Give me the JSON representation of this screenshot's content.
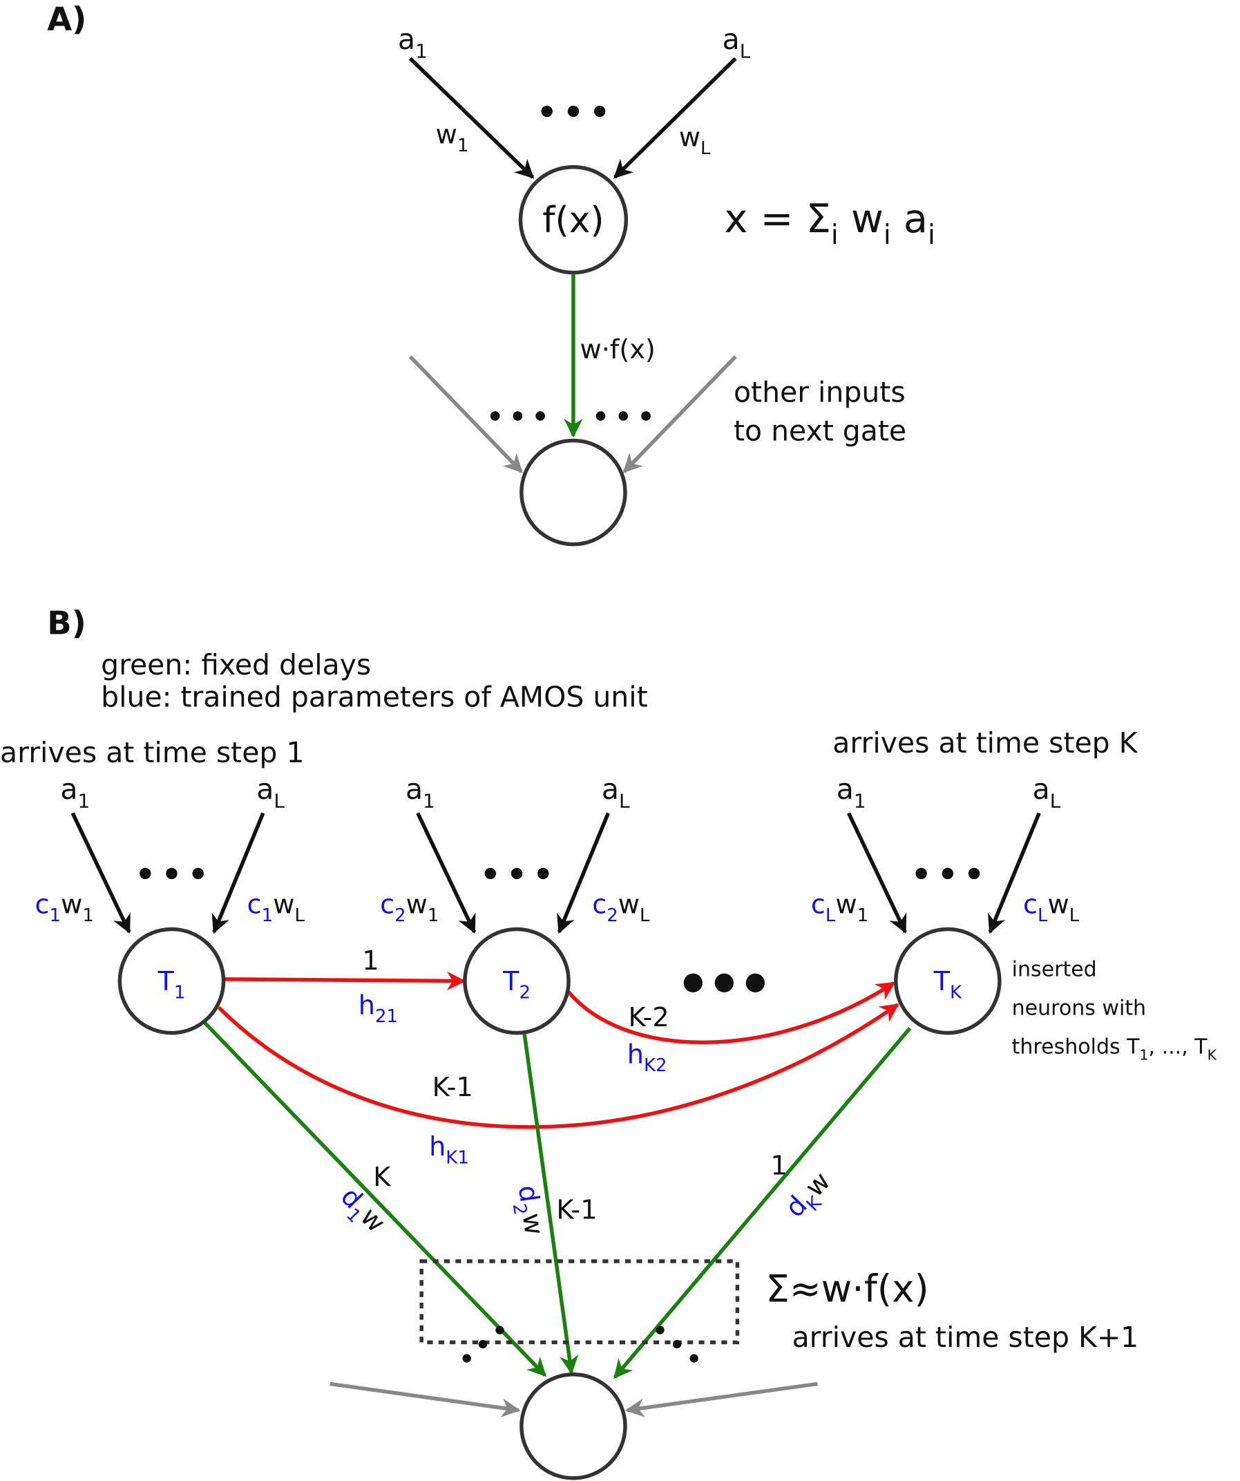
{
  "panel_a": {
    "label": "A)",
    "inputs": [
      [
        {
          "text": "a",
          "sub": "1"
        }
      ],
      [
        {
          "text": "a",
          "sub": "L"
        }
      ]
    ],
    "weights": [
      [
        {
          "text": "w",
          "sub": "1"
        }
      ],
      [
        {
          "text": "w",
          "sub": "L"
        }
      ]
    ],
    "gate": "f(x)",
    "formula": [
      {
        "text": "x = Σ",
        "sub": "i"
      },
      {
        "text": " w",
        "sub": "i"
      },
      {
        "text": " a",
        "sub": "i"
      }
    ],
    "output_label": "w·f(x)",
    "note": [
      "other inputs",
      "to next gate"
    ]
  },
  "panel_b": {
    "label": "B)",
    "legend": [
      "green: fixed delays",
      "blue: trained parameters of AMOS unit"
    ],
    "arrives_first": "arrives at time step 1",
    "arrives_last": "arrives at time step K",
    "neurons": [
      {
        "threshold": [
          {
            "text": "T",
            "sub": "1"
          }
        ],
        "inputs": [
          [
            {
              "text": "a",
              "sub": "1"
            }
          ],
          [
            {
              "text": "a",
              "sub": "L"
            }
          ]
        ],
        "weights": [
          [
            {
              "text": "c",
              "sub": "1"
            },
            {
              "text": "w",
              "sub": "1"
            }
          ],
          [
            {
              "text": "c",
              "sub": "1"
            },
            {
              "text": "w",
              "sub": "L"
            }
          ]
        ]
      },
      {
        "threshold": [
          {
            "text": "T",
            "sub": "2"
          }
        ],
        "inputs": [
          [
            {
              "text": "a",
              "sub": "1"
            }
          ],
          [
            {
              "text": "a",
              "sub": "L"
            }
          ]
        ],
        "weights": [
          [
            {
              "text": "c",
              "sub": "2"
            },
            {
              "text": "w",
              "sub": "1"
            }
          ],
          [
            {
              "text": "c",
              "sub": "2"
            },
            {
              "text": "w",
              "sub": "L"
            }
          ]
        ]
      },
      {
        "threshold": [
          {
            "text": "T",
            "sub": "K"
          }
        ],
        "inputs": [
          [
            {
              "text": "a",
              "sub": "1"
            }
          ],
          [
            {
              "text": "a",
              "sub": "L"
            }
          ]
        ],
        "weights": [
          [
            {
              "text": "c",
              "sub": "L"
            },
            {
              "text": "w",
              "sub": "1"
            }
          ],
          [
            {
              "text": "c",
              "sub": "L"
            },
            {
              "text": "w",
              "sub": "L"
            }
          ]
        ]
      }
    ],
    "red_edges": [
      {
        "delay": "1",
        "param": [
          {
            "text": "h",
            "sub": "21"
          }
        ]
      },
      {
        "delay": "K-2",
        "param": [
          {
            "text": "h",
            "sub": "K2"
          }
        ]
      },
      {
        "delay": "K-1",
        "param": [
          {
            "text": "h",
            "sub": "K1"
          }
        ]
      }
    ],
    "output_edges": [
      {
        "delay": "K",
        "param": [
          {
            "text": "d",
            "sub": "1"
          },
          {
            "text": "w"
          }
        ]
      },
      {
        "delay": "K-1",
        "param": [
          {
            "text": "d",
            "sub": "2"
          },
          {
            "text": "w"
          }
        ]
      },
      {
        "delay": "1",
        "param": [
          {
            "text": "d",
            "sub": "K"
          },
          {
            "text": "w"
          }
        ]
      }
    ],
    "note": [
      [
        {
          "text": "inserted"
        }
      ],
      [
        {
          "text": "neurons with"
        }
      ],
      [
        {
          "text": "thresholds T",
          "sub": "1"
        },
        {
          "text": ", ..., T",
          "sub": "K"
        }
      ]
    ],
    "sum_label": "Σ≈w·f(x)",
    "arrives_result": "arrives at time step K+1"
  }
}
